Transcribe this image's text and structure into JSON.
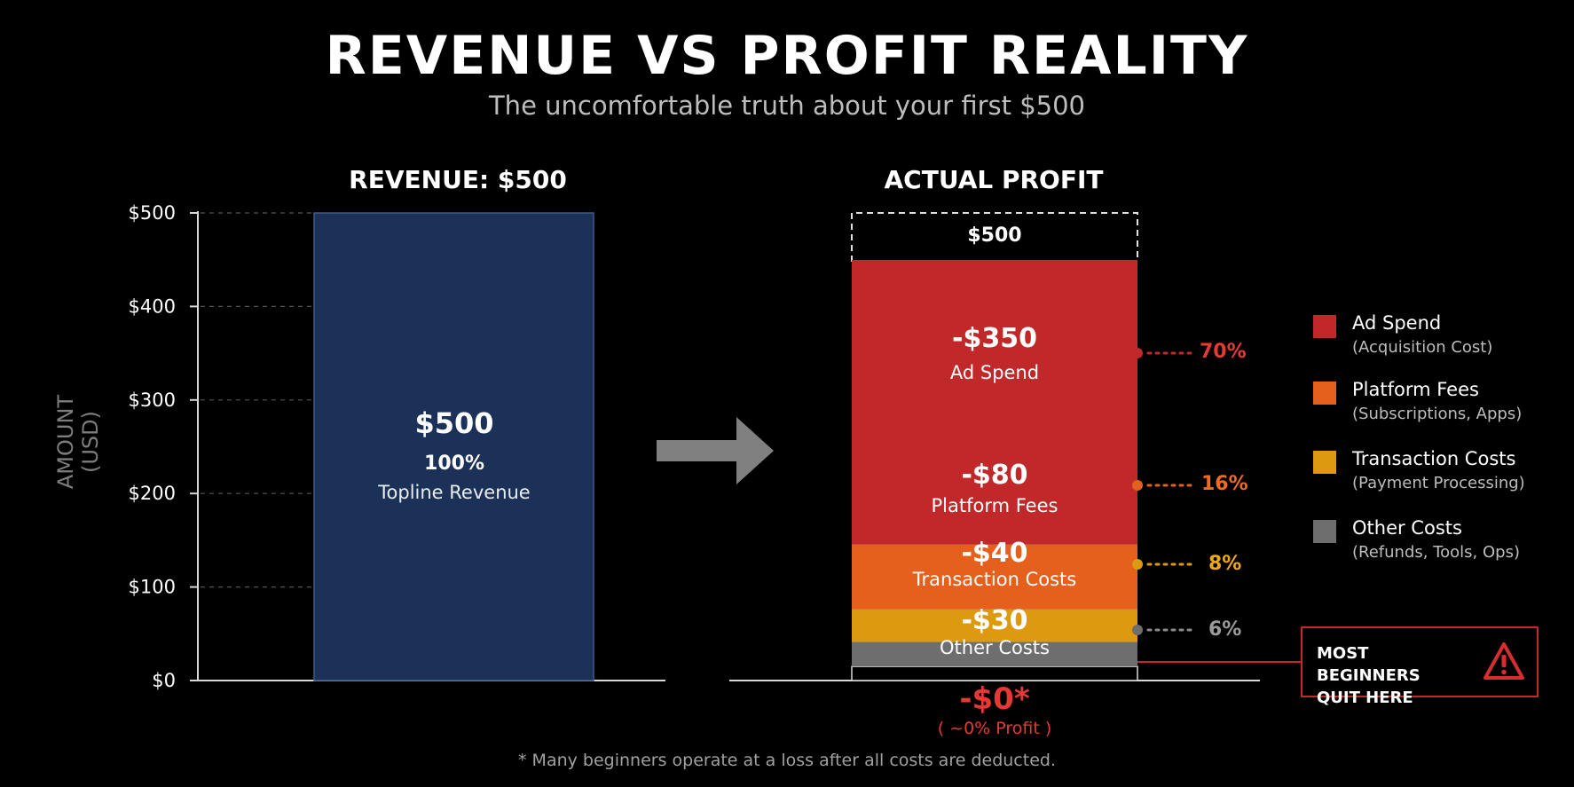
{
  "title": "REVENUE VS PROFIT REALITY",
  "subtitle": "The uncomfortable truth about your first $500",
  "footnote": "* Many beginners operate at a loss after all costs are deducted.",
  "colors": {
    "revenue": "#1c3158",
    "ad_spend": "#c0282a",
    "platform_fees": "#e4601c",
    "transaction_costs": "#dd9a10",
    "other_costs": "#6e6e6e",
    "warning": "#c62828"
  },
  "chart_data": [
    {
      "type": "bar",
      "title": "REVENUE: $500",
      "ylabel": "AMOUNT (USD)",
      "yticks": [
        "$0",
        "$100",
        "$200",
        "$300",
        "$400",
        "$500"
      ],
      "ylim": [
        0,
        500
      ],
      "grid": true,
      "bar": {
        "value": 500,
        "value_label": "$500",
        "percent_label": "100%",
        "label": "Topline Revenue"
      }
    },
    {
      "type": "bar",
      "stacked": true,
      "title": "ACTUAL PROFIT",
      "ylim": [
        0,
        500
      ],
      "total_label": "$500",
      "segments": [
        {
          "name": "Ad Spend",
          "value": 350,
          "value_label": "-$350",
          "percent_label": "70%",
          "color_key": "ad_spend"
        },
        {
          "name": "Platform Fees",
          "value": 80,
          "value_label": "-$80",
          "percent_label": "16%",
          "color_key": "platform_fees"
        },
        {
          "name": "Transaction Costs",
          "value": 40,
          "value_label": "-$40",
          "percent_label": "8%",
          "color_key": "transaction_costs"
        },
        {
          "name": "Other Costs",
          "value": 30,
          "value_label": "-$30",
          "percent_label": "6%",
          "color_key": "other_costs"
        }
      ],
      "profit_label": "-$0*",
      "profit_note": "( ~0% Profit )",
      "legend_placement": "right",
      "legend": [
        {
          "name": "Ad Spend",
          "sub": "(Acquisition Cost)",
          "color_key": "ad_spend"
        },
        {
          "name": "Platform Fees",
          "sub": "(Subscriptions, Apps)",
          "color_key": "platform_fees"
        },
        {
          "name": "Transaction Costs",
          "sub": "(Payment Processing)",
          "color_key": "transaction_costs"
        },
        {
          "name": "Other Costs",
          "sub": "(Refunds, Tools, Ops)",
          "color_key": "other_costs"
        }
      ]
    }
  ],
  "warning": {
    "line1": "MOST BEGINNERS",
    "line2": "QUIT HERE",
    "icon": "warning-triangle-icon"
  }
}
